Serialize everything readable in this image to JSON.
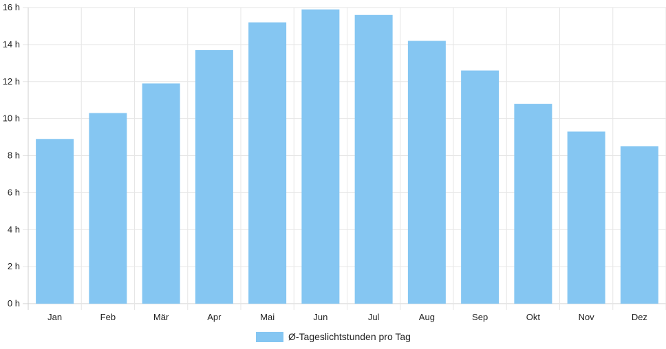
{
  "chart_data": {
    "type": "bar",
    "categories": [
      "Jan",
      "Feb",
      "Mär",
      "Apr",
      "Mai",
      "Jun",
      "Jul",
      "Aug",
      "Sep",
      "Okt",
      "Nov",
      "Dez"
    ],
    "series": [
      {
        "name": "Ø-Tageslichtstunden pro Tag",
        "values": [
          8.9,
          10.3,
          11.9,
          13.7,
          15.2,
          15.9,
          15.6,
          14.2,
          12.6,
          10.8,
          9.3,
          8.5
        ]
      }
    ],
    "y_ticks": [
      "0 h",
      "2 h",
      "4 h",
      "6 h",
      "8 h",
      "10 h",
      "12 h",
      "14 h",
      "16 h"
    ],
    "ylim": [
      0,
      16
    ],
    "y_tick_step": 2,
    "grid": true,
    "legend_position": "bottom",
    "colors": {
      "bar_fill": "#85c6f2",
      "grid": "#e6e6e6",
      "axis": "#cfcfcf",
      "text": "#222222"
    }
  }
}
